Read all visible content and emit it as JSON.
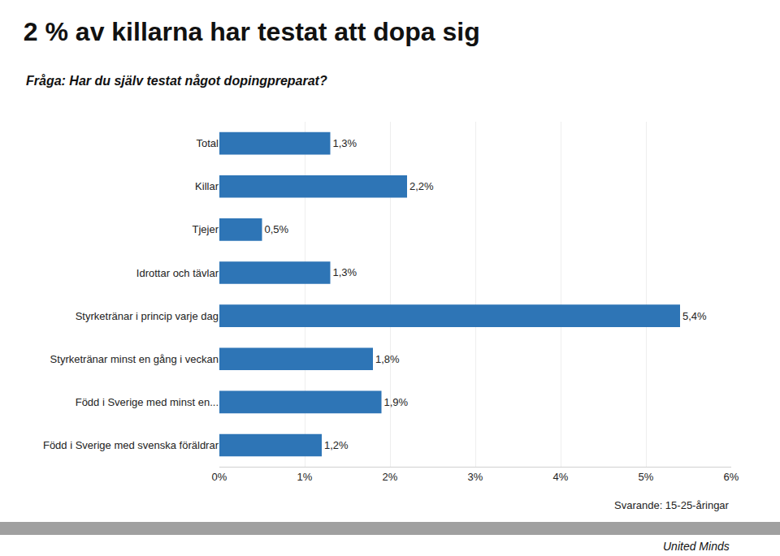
{
  "chart_data": {
    "type": "bar",
    "orientation": "horizontal",
    "title": "2 % av killarna har testat att dopa sig",
    "subtitle": "Fråga: Har du själv testat något dopingpreparat?",
    "annotations": [
      "Svarande: 15-25-åringar",
      "United Minds"
    ],
    "categories": [
      "Total",
      "Killar",
      "Tjejer",
      "Idrottar och tävlar",
      "Styrketränar i princip varje dag",
      "Styrketränar minst en gång i veckan",
      "Född i Sverige med minst en...",
      "Född i Sverige med svenska föräldrar"
    ],
    "values": [
      1.3,
      2.2,
      0.5,
      1.3,
      5.4,
      1.8,
      1.9,
      1.2
    ],
    "value_labels": [
      "1,3%",
      "2,2%",
      "0,5%",
      "1,3%",
      "5,4%",
      "1,8%",
      "1,9%",
      "1,2%"
    ],
    "data_labels": true,
    "color": "#2e75b6",
    "xlim": [
      0,
      6
    ],
    "xticks": [
      {
        "value": 0,
        "label": "0%"
      },
      {
        "value": 1,
        "label": "1%"
      },
      {
        "value": 2,
        "label": "2%"
      },
      {
        "value": 3,
        "label": "3%"
      },
      {
        "value": 4,
        "label": "4%"
      },
      {
        "value": 5,
        "label": "5%"
      },
      {
        "value": 6,
        "label": "6%"
      }
    ],
    "grid": true
  }
}
